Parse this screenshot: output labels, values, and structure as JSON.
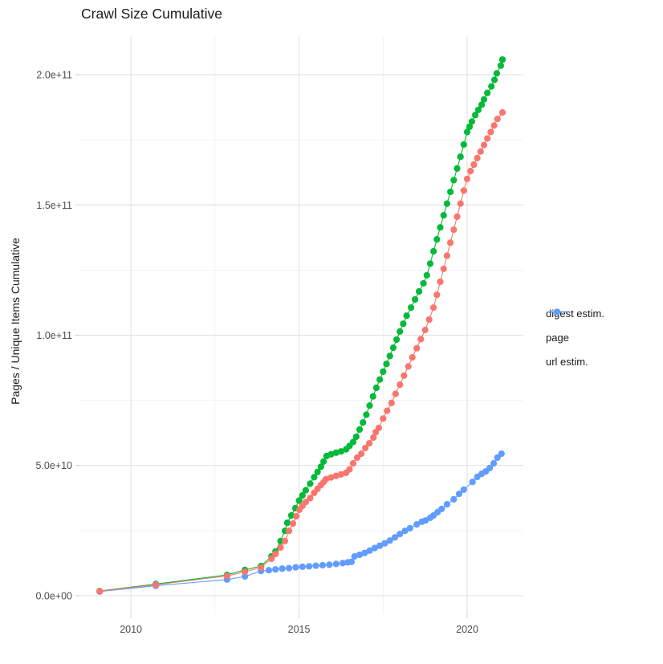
{
  "chart_data": {
    "type": "scatter",
    "title": "Crawl Size Cumulative",
    "xlabel": "",
    "ylabel": "Pages / Unique Items Cumulative",
    "value_unit": 1000000000,
    "x_domain": [
      2008.47,
      2021.67
    ],
    "y_domain": [
      -7.1,
      214.8
    ],
    "x_ticks": {
      "major": [
        2010,
        2015,
        2020
      ],
      "labels": [
        "2010",
        "2015",
        "2020"
      ],
      "minor": [
        2012.5,
        2017.5
      ]
    },
    "y_ticks": {
      "major": [
        0,
        50,
        100,
        150,
        200
      ],
      "labels": [
        "0.0e+00",
        "5.0e+10",
        "1.0e+11",
        "1.5e+11",
        "2.0e+11"
      ],
      "minor": [
        25,
        75,
        125,
        175
      ]
    },
    "grid": true,
    "legend_position": "right",
    "series": [
      {
        "name": "digest estim.",
        "color": "#F8766D",
        "points": [
          [
            2009.07,
            1.7
          ],
          [
            2010.74,
            4.2
          ],
          [
            2012.86,
            7.6
          ],
          [
            2013.39,
            9.2
          ],
          [
            2013.87,
            10.8
          ],
          [
            2014.18,
            14.2
          ],
          [
            2014.3,
            16.0
          ],
          [
            2014.45,
            18.5
          ],
          [
            2014.58,
            21.0
          ],
          [
            2014.7,
            24.9
          ],
          [
            2014.82,
            27.7
          ],
          [
            2014.92,
            30.5
          ],
          [
            2015.01,
            33.0
          ],
          [
            2015.1,
            34.5
          ],
          [
            2015.2,
            36.0
          ],
          [
            2015.33,
            37.5
          ],
          [
            2015.45,
            39.5
          ],
          [
            2015.55,
            41.0
          ],
          [
            2015.65,
            42.5
          ],
          [
            2015.73,
            43.6
          ],
          [
            2015.8,
            44.7
          ],
          [
            2015.95,
            45.4
          ],
          [
            2016.1,
            46.0
          ],
          [
            2016.25,
            46.6
          ],
          [
            2016.4,
            47.2
          ],
          [
            2016.5,
            48.5
          ],
          [
            2016.61,
            50.8
          ],
          [
            2016.73,
            53.0
          ],
          [
            2016.85,
            54.5
          ],
          [
            2016.97,
            56.7
          ],
          [
            2017.09,
            58.5
          ],
          [
            2017.21,
            60.7
          ],
          [
            2017.28,
            62.8
          ],
          [
            2017.37,
            64.4
          ],
          [
            2017.5,
            68.0
          ],
          [
            2017.62,
            71.0
          ],
          [
            2017.75,
            74.0
          ],
          [
            2017.87,
            77.5
          ],
          [
            2018.0,
            81.0
          ],
          [
            2018.12,
            84.5
          ],
          [
            2018.25,
            88.0
          ],
          [
            2018.37,
            91.5
          ],
          [
            2018.5,
            95.0
          ],
          [
            2018.62,
            98.5
          ],
          [
            2018.75,
            102.0
          ],
          [
            2018.87,
            106.0
          ],
          [
            2019.0,
            110.6
          ],
          [
            2019.1,
            115.5
          ],
          [
            2019.2,
            120.5
          ],
          [
            2019.3,
            125.5
          ],
          [
            2019.4,
            130.5
          ],
          [
            2019.5,
            135.5
          ],
          [
            2019.6,
            140.5
          ],
          [
            2019.7,
            145.5
          ],
          [
            2019.8,
            150.5
          ],
          [
            2019.9,
            155.5
          ],
          [
            2020.0,
            160.0
          ],
          [
            2020.1,
            163.0
          ],
          [
            2020.2,
            165.5
          ],
          [
            2020.3,
            168.0
          ],
          [
            2020.4,
            170.5
          ],
          [
            2020.5,
            173.0
          ],
          [
            2020.6,
            175.5
          ],
          [
            2020.7,
            178.0
          ],
          [
            2020.8,
            180.5
          ],
          [
            2020.9,
            183.0
          ],
          [
            2021.05,
            185.5
          ]
        ]
      },
      {
        "name": "page",
        "color": "#00BA38",
        "points": [
          [
            2009.07,
            1.8
          ],
          [
            2010.74,
            4.5
          ],
          [
            2012.86,
            8.0
          ],
          [
            2013.39,
            9.9
          ],
          [
            2013.87,
            11.4
          ],
          [
            2014.18,
            15.1
          ],
          [
            2014.3,
            17.0
          ],
          [
            2014.45,
            21.0
          ],
          [
            2014.58,
            24.9
          ],
          [
            2014.65,
            28.0
          ],
          [
            2014.77,
            30.8
          ],
          [
            2014.89,
            33.6
          ],
          [
            2015.0,
            36.5
          ],
          [
            2015.1,
            38.5
          ],
          [
            2015.2,
            40.5
          ],
          [
            2015.33,
            43.0
          ],
          [
            2015.45,
            45.5
          ],
          [
            2015.55,
            47.5
          ],
          [
            2015.65,
            49.5
          ],
          [
            2015.73,
            51.5
          ],
          [
            2015.82,
            53.6
          ],
          [
            2015.95,
            54.3
          ],
          [
            2016.1,
            54.9
          ],
          [
            2016.25,
            55.4
          ],
          [
            2016.4,
            56.2
          ],
          [
            2016.5,
            57.5
          ],
          [
            2016.61,
            59.0
          ],
          [
            2016.7,
            61.0
          ],
          [
            2016.8,
            63.8
          ],
          [
            2016.9,
            66.5
          ],
          [
            2017.0,
            69.5
          ],
          [
            2017.1,
            73.0
          ],
          [
            2017.2,
            76.5
          ],
          [
            2017.3,
            79.8
          ],
          [
            2017.4,
            83.0
          ],
          [
            2017.5,
            86.0
          ],
          [
            2017.6,
            89.0
          ],
          [
            2017.7,
            92.0
          ],
          [
            2017.8,
            95.2
          ],
          [
            2017.9,
            98.3
          ],
          [
            2018.0,
            101.4
          ],
          [
            2018.1,
            104.4
          ],
          [
            2018.2,
            107.5
          ],
          [
            2018.33,
            110.6
          ],
          [
            2018.45,
            113.7
          ],
          [
            2018.57,
            116.8
          ],
          [
            2018.7,
            119.9
          ],
          [
            2018.8,
            123.0
          ],
          [
            2018.9,
            127.5
          ],
          [
            2019.0,
            132.2
          ],
          [
            2019.1,
            136.8
          ],
          [
            2019.2,
            141.4
          ],
          [
            2019.3,
            146.0
          ],
          [
            2019.4,
            150.5
          ],
          [
            2019.5,
            155.0
          ],
          [
            2019.6,
            159.5
          ],
          [
            2019.7,
            164.0
          ],
          [
            2019.8,
            168.5
          ],
          [
            2019.9,
            173.2
          ],
          [
            2020.0,
            178.0
          ],
          [
            2020.07,
            180.0
          ],
          [
            2020.14,
            182.0
          ],
          [
            2020.24,
            184.5
          ],
          [
            2020.33,
            186.5
          ],
          [
            2020.43,
            188.5
          ],
          [
            2020.5,
            190.5
          ],
          [
            2020.6,
            193.0
          ],
          [
            2020.72,
            195.5
          ],
          [
            2020.81,
            198.0
          ],
          [
            2020.88,
            200.5
          ],
          [
            2021.0,
            203.5
          ],
          [
            2021.05,
            205.8
          ]
        ]
      },
      {
        "name": "url estim.",
        "color": "#619CFF",
        "points": [
          [
            2009.07,
            1.6
          ],
          [
            2010.74,
            3.8
          ],
          [
            2012.86,
            6.2
          ],
          [
            2013.39,
            7.4
          ],
          [
            2013.87,
            9.5
          ],
          [
            2014.1,
            9.8
          ],
          [
            2014.3,
            10.1
          ],
          [
            2014.5,
            10.4
          ],
          [
            2014.7,
            10.6
          ],
          [
            2014.9,
            10.9
          ],
          [
            2015.1,
            11.1
          ],
          [
            2015.3,
            11.3
          ],
          [
            2015.5,
            11.5
          ],
          [
            2015.7,
            11.7
          ],
          [
            2015.9,
            11.9
          ],
          [
            2016.1,
            12.2
          ],
          [
            2016.3,
            12.5
          ],
          [
            2016.45,
            12.8
          ],
          [
            2016.56,
            13.0
          ],
          [
            2016.65,
            15.1
          ],
          [
            2016.8,
            15.7
          ],
          [
            2016.95,
            16.4
          ],
          [
            2017.1,
            17.3
          ],
          [
            2017.25,
            18.3
          ],
          [
            2017.4,
            19.2
          ],
          [
            2017.55,
            20.1
          ],
          [
            2017.7,
            21.2
          ],
          [
            2017.85,
            22.4
          ],
          [
            2018.0,
            23.7
          ],
          [
            2018.15,
            24.9
          ],
          [
            2018.3,
            25.9
          ],
          [
            2018.5,
            27.4
          ],
          [
            2018.65,
            28.4
          ],
          [
            2018.76,
            28.9
          ],
          [
            2018.9,
            29.9
          ],
          [
            2019.0,
            30.8
          ],
          [
            2019.12,
            32.1
          ],
          [
            2019.24,
            33.3
          ],
          [
            2019.4,
            35.1
          ],
          [
            2019.6,
            37.0
          ],
          [
            2019.76,
            39.1
          ],
          [
            2019.9,
            40.7
          ],
          [
            2020.16,
            43.7
          ],
          [
            2020.3,
            45.6
          ],
          [
            2020.43,
            46.8
          ],
          [
            2020.55,
            47.7
          ],
          [
            2020.67,
            49.0
          ],
          [
            2020.79,
            50.8
          ],
          [
            2020.9,
            53.0
          ],
          [
            2021.02,
            54.5
          ]
        ]
      }
    ]
  },
  "colors": {
    "background": "#ffffff",
    "grid_major": "#e3e3e3",
    "grid_minor": "#f0f0f0",
    "tick_label": "#4d4d4d",
    "text": "#1a1a1a"
  }
}
